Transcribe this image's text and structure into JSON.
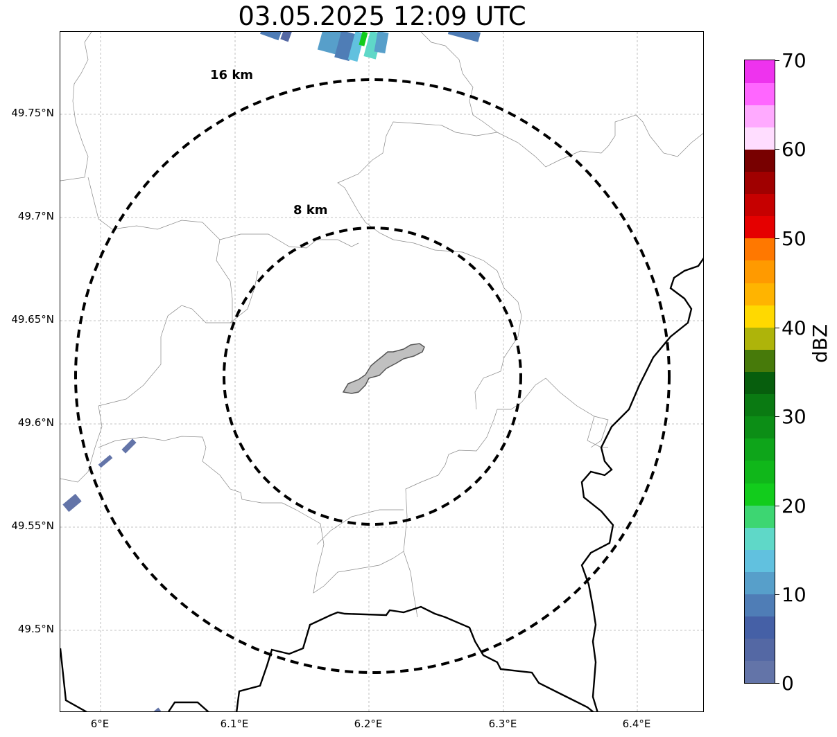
{
  "map": {
    "title": "03.05.2025 12:09 UTC",
    "lat_axis": [
      "49.75°N",
      "49.7°N",
      "49.65°N",
      "49.6°N",
      "49.55°N",
      "49.5°N"
    ],
    "lon_axis": [
      "6°E",
      "6.1°E",
      "6.2°E",
      "6.3°E",
      "6.4°E"
    ],
    "range_rings": [
      "16 km",
      "8 km"
    ],
    "colors": {
      "ring": "#000000",
      "grid": "#b0b0b0",
      "border_major": "#000000",
      "border_minor": "#888888",
      "city_fill": "#c0c0c0"
    }
  },
  "colorbar": {
    "label": "dBZ",
    "ticks": [
      "70",
      "60",
      "50",
      "40",
      "30",
      "20",
      "10",
      "0"
    ],
    "range": [
      0,
      70
    ],
    "bins": [
      {
        "from": 0,
        "to": 2.5,
        "color": "#6374a8"
      },
      {
        "from": 2.5,
        "to": 5,
        "color": "#5468a4"
      },
      {
        "from": 5,
        "to": 7.5,
        "color": "#4560a6"
      },
      {
        "from": 7.5,
        "to": 10,
        "color": "#4f7db6"
      },
      {
        "from": 10,
        "to": 12.5,
        "color": "#579fca"
      },
      {
        "from": 12.5,
        "to": 15,
        "color": "#61c1df"
      },
      {
        "from": 15,
        "to": 17.5,
        "color": "#5fd8c8"
      },
      {
        "from": 17.5,
        "to": 20,
        "color": "#3dd672"
      },
      {
        "from": 20,
        "to": 22.5,
        "color": "#12cc1c"
      },
      {
        "from": 22.5,
        "to": 25,
        "color": "#10b71a"
      },
      {
        "from": 25,
        "to": 27.5,
        "color": "#0ea51a"
      },
      {
        "from": 27.5,
        "to": 30,
        "color": "#0c8e16"
      },
      {
        "from": 30,
        "to": 32.5,
        "color": "#0a7a12"
      },
      {
        "from": 32.5,
        "to": 35,
        "color": "#075e0d"
      },
      {
        "from": 35,
        "to": 37.5,
        "color": "#477a0a"
      },
      {
        "from": 37.5,
        "to": 40,
        "color": "#aeb40a"
      },
      {
        "from": 40,
        "to": 42.5,
        "color": "#ffd900"
      },
      {
        "from": 42.5,
        "to": 45,
        "color": "#ffb400"
      },
      {
        "from": 45,
        "to": 47.5,
        "color": "#ff9a00"
      },
      {
        "from": 47.5,
        "to": 50,
        "color": "#ff7800"
      },
      {
        "from": 50,
        "to": 52.5,
        "color": "#e50000"
      },
      {
        "from": 52.5,
        "to": 55,
        "color": "#c60000"
      },
      {
        "from": 55,
        "to": 57.5,
        "color": "#a00000"
      },
      {
        "from": 57.5,
        "to": 60,
        "color": "#780000"
      },
      {
        "from": 60,
        "to": 62.5,
        "color": "#ffddff"
      },
      {
        "from": 62.5,
        "to": 65,
        "color": "#ffaaff"
      },
      {
        "from": 65,
        "to": 67.5,
        "color": "#ff66ff"
      },
      {
        "from": 67.5,
        "to": 70,
        "color": "#ee33ee"
      }
    ]
  }
}
